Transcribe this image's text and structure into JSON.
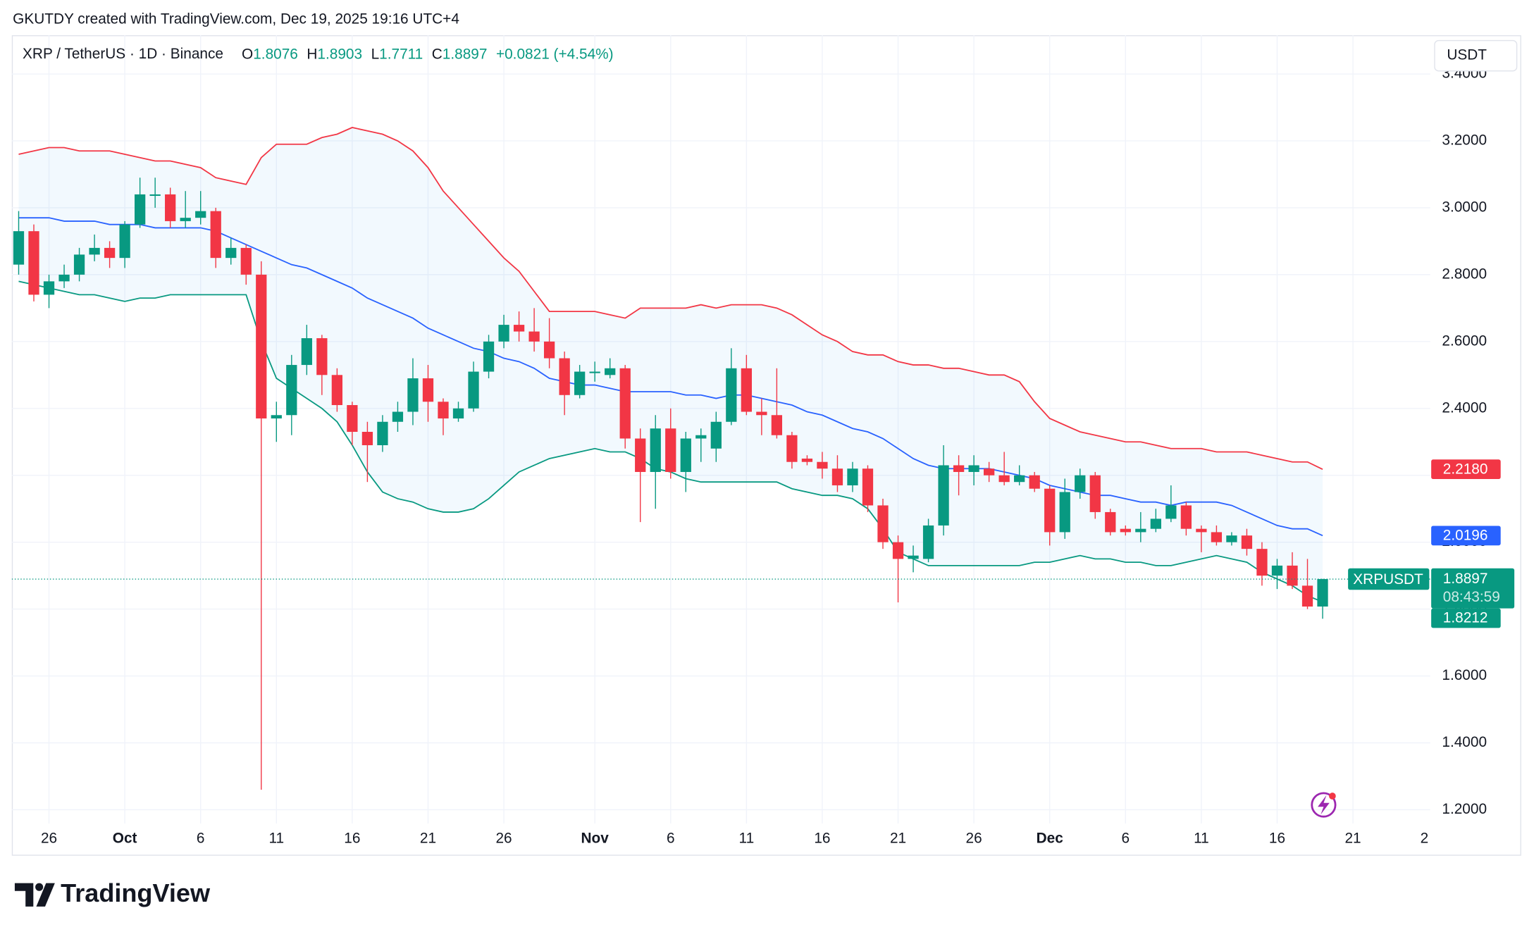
{
  "attribution": "GKUTDY created with TradingView.com, Dec 19, 2025 19:16 UTC+4",
  "symbol": "XRP / TetherUS · 1D · Binance",
  "currency": "USDT",
  "logo": "TradingView",
  "chart_data": {
    "type": "candlestick",
    "ohlc_labels": [
      "O",
      "H",
      "L",
      "C"
    ],
    "change": "+0.0821 (+4.54%)",
    "countdown": "08:43:59",
    "grid": true,
    "band_fill": "#2196f3",
    "xlim": [
      "2025-09-23",
      "2025-12-27"
    ],
    "ylim": [
      1.159,
      3.516
    ],
    "yticks": [
      {
        "value": 1.2,
        "label": "1.2000"
      },
      {
        "value": 1.4,
        "label": "1.4000"
      },
      {
        "value": 1.6,
        "label": "1.6000"
      },
      {
        "value": 1.8,
        "label": "1.8000"
      },
      {
        "value": 2.0,
        "label": "2.0000"
      },
      {
        "value": 2.2,
        "label": "2.2000"
      },
      {
        "value": 2.4,
        "label": "2.4000"
      },
      {
        "value": 2.6,
        "label": "2.6000"
      },
      {
        "value": 2.8,
        "label": "2.8000"
      },
      {
        "value": 3.0,
        "label": "3.0000"
      },
      {
        "value": 3.2,
        "label": "3.2000"
      },
      {
        "value": 3.4,
        "label": "3.4000"
      }
    ],
    "xticks": [
      {
        "value": "2025-09-26",
        "label": "26"
      },
      {
        "value": "2025-10-01",
        "label": "Oct"
      },
      {
        "value": "2025-10-06",
        "label": "6"
      },
      {
        "value": "2025-10-11",
        "label": "11"
      },
      {
        "value": "2025-10-16",
        "label": "16"
      },
      {
        "value": "2025-10-21",
        "label": "21"
      },
      {
        "value": "2025-10-26",
        "label": "26"
      },
      {
        "value": "2025-11-01",
        "label": "Nov"
      },
      {
        "value": "2025-11-06",
        "label": "6"
      },
      {
        "value": "2025-11-11",
        "label": "11"
      },
      {
        "value": "2025-11-16",
        "label": "16"
      },
      {
        "value": "2025-11-21",
        "label": "21"
      },
      {
        "value": "2025-11-26",
        "label": "26"
      },
      {
        "value": "2025-12-01",
        "label": "Dec"
      },
      {
        "value": "2025-12-06",
        "label": "6"
      },
      {
        "value": "2025-12-11",
        "label": "11"
      },
      {
        "value": "2025-12-16",
        "label": "16"
      },
      {
        "value": "2025-12-21",
        "label": "21"
      },
      {
        "value": "2026-01-02",
        "label": "2"
      }
    ],
    "x": [
      "2025-09-24",
      "2025-09-25",
      "2025-09-26",
      "2025-09-27",
      "2025-09-28",
      "2025-09-29",
      "2025-09-30",
      "2025-10-01",
      "2025-10-02",
      "2025-10-03",
      "2025-10-04",
      "2025-10-05",
      "2025-10-06",
      "2025-10-07",
      "2025-10-08",
      "2025-10-09",
      "2025-10-10",
      "2025-10-11",
      "2025-10-12",
      "2025-10-13",
      "2025-10-14",
      "2025-10-15",
      "2025-10-16",
      "2025-10-17",
      "2025-10-18",
      "2025-10-19",
      "2025-10-20",
      "2025-10-21",
      "2025-10-22",
      "2025-10-23",
      "2025-10-24",
      "2025-10-25",
      "2025-10-26",
      "2025-10-27",
      "2025-10-28",
      "2025-10-29",
      "2025-10-30",
      "2025-10-31",
      "2025-11-01",
      "2025-11-02",
      "2025-11-03",
      "2025-11-04",
      "2025-11-05",
      "2025-11-06",
      "2025-11-07",
      "2025-11-08",
      "2025-11-09",
      "2025-11-10",
      "2025-11-11",
      "2025-11-12",
      "2025-11-13",
      "2025-11-14",
      "2025-11-15",
      "2025-11-16",
      "2025-11-17",
      "2025-11-18",
      "2025-11-19",
      "2025-11-20",
      "2025-11-21",
      "2025-11-22",
      "2025-11-23",
      "2025-11-24",
      "2025-11-25",
      "2025-11-26",
      "2025-11-27",
      "2025-11-28",
      "2025-11-29",
      "2025-11-30",
      "2025-12-01",
      "2025-12-02",
      "2025-12-03",
      "2025-12-04",
      "2025-12-05",
      "2025-12-06",
      "2025-12-07",
      "2025-12-08",
      "2025-12-09",
      "2025-12-10",
      "2025-12-11",
      "2025-12-12",
      "2025-12-13",
      "2025-12-14",
      "2025-12-15",
      "2025-12-16",
      "2025-12-17",
      "2025-12-18",
      "2025-12-19"
    ],
    "series": [
      {
        "name": "XRPUSDT",
        "type": "candlestick",
        "up_color": "#089981",
        "down_color": "#f23645",
        "open": [
          2.83,
          2.93,
          2.74,
          2.78,
          2.8,
          2.86,
          2.88,
          2.85,
          2.95,
          3.04,
          3.04,
          2.96,
          2.97,
          2.99,
          2.85,
          2.88,
          2.8,
          2.37,
          2.38,
          2.53,
          2.61,
          2.5,
          2.41,
          2.33,
          2.29,
          2.36,
          2.39,
          2.49,
          2.42,
          2.37,
          2.4,
          2.51,
          2.6,
          2.65,
          2.63,
          2.6,
          2.55,
          2.44,
          2.51,
          2.5,
          2.52,
          2.31,
          2.21,
          2.34,
          2.21,
          2.31,
          2.28,
          2.36,
          2.52,
          2.39,
          2.38,
          2.32,
          2.25,
          2.24,
          2.22,
          2.17,
          2.22,
          2.11,
          2.0,
          1.95,
          1.95,
          2.05,
          2.23,
          2.21,
          2.22,
          2.2,
          2.18,
          2.2,
          2.16,
          2.03,
          2.15,
          2.2,
          2.09,
          2.04,
          2.03,
          2.04,
          2.07,
          2.11,
          2.04,
          2.03,
          2.0,
          2.02,
          1.98,
          1.9,
          1.93,
          1.87,
          1.8076
        ],
        "high": [
          2.99,
          2.95,
          2.8,
          2.83,
          2.88,
          2.92,
          2.9,
          2.96,
          3.09,
          3.09,
          3.06,
          3.05,
          3.05,
          3.0,
          2.91,
          2.89,
          2.84,
          2.42,
          2.56,
          2.65,
          2.62,
          2.52,
          2.42,
          2.36,
          2.38,
          2.42,
          2.55,
          2.53,
          2.43,
          2.42,
          2.54,
          2.62,
          2.68,
          2.69,
          2.7,
          2.67,
          2.57,
          2.53,
          2.54,
          2.55,
          2.53,
          2.34,
          2.38,
          2.4,
          2.33,
          2.34,
          2.39,
          2.58,
          2.56,
          2.43,
          2.52,
          2.33,
          2.26,
          2.27,
          2.26,
          2.24,
          2.23,
          2.13,
          2.02,
          1.99,
          2.07,
          2.29,
          2.26,
          2.26,
          2.24,
          2.27,
          2.23,
          2.21,
          2.17,
          2.19,
          2.22,
          2.21,
          2.1,
          2.05,
          2.09,
          2.1,
          2.17,
          2.12,
          2.05,
          2.05,
          2.03,
          2.04,
          2.0,
          1.95,
          1.97,
          1.95,
          1.8903
        ],
        "low": [
          2.8,
          2.72,
          2.7,
          2.76,
          2.78,
          2.84,
          2.82,
          2.82,
          2.94,
          3.0,
          2.94,
          2.94,
          2.95,
          2.82,
          2.83,
          2.77,
          1.26,
          2.3,
          2.32,
          2.5,
          2.44,
          2.39,
          2.29,
          2.18,
          2.27,
          2.33,
          2.35,
          2.36,
          2.32,
          2.36,
          2.39,
          2.49,
          2.58,
          2.6,
          2.57,
          2.52,
          2.38,
          2.43,
          2.48,
          2.49,
          2.28,
          2.06,
          2.1,
          2.19,
          2.15,
          2.24,
          2.24,
          2.35,
          2.38,
          2.32,
          2.31,
          2.22,
          2.23,
          2.19,
          2.15,
          2.15,
          2.09,
          1.98,
          1.82,
          1.91,
          1.94,
          2.02,
          2.14,
          2.17,
          2.18,
          2.17,
          2.17,
          2.15,
          1.99,
          2.01,
          2.13,
          2.07,
          2.02,
          2.02,
          2.0,
          2.03,
          2.06,
          2.02,
          1.97,
          1.99,
          1.99,
          1.96,
          1.87,
          1.86,
          1.86,
          1.8,
          1.7711
        ],
        "close": [
          2.93,
          2.74,
          2.78,
          2.8,
          2.86,
          2.88,
          2.85,
          2.95,
          3.04,
          3.04,
          2.96,
          2.97,
          2.99,
          2.85,
          2.88,
          2.8,
          2.37,
          2.38,
          2.53,
          2.61,
          2.5,
          2.41,
          2.33,
          2.29,
          2.36,
          2.39,
          2.49,
          2.42,
          2.37,
          2.4,
          2.51,
          2.6,
          2.65,
          2.63,
          2.6,
          2.55,
          2.44,
          2.51,
          2.51,
          2.52,
          2.31,
          2.21,
          2.34,
          2.21,
          2.31,
          2.32,
          2.36,
          2.52,
          2.39,
          2.38,
          2.32,
          2.24,
          2.24,
          2.22,
          2.17,
          2.22,
          2.11,
          2.0,
          1.95,
          1.96,
          2.05,
          2.23,
          2.21,
          2.23,
          2.2,
          2.18,
          2.2,
          2.16,
          2.03,
          2.15,
          2.2,
          2.09,
          2.03,
          2.03,
          2.04,
          2.07,
          2.11,
          2.04,
          2.03,
          2.0,
          2.02,
          1.98,
          1.9,
          1.93,
          1.87,
          1.8076,
          1.8897
        ]
      },
      {
        "type": "line",
        "color": "#f23645",
        "last_value_label": "2.2180",
        "values": [
          3.16,
          3.17,
          3.18,
          3.18,
          3.17,
          3.17,
          3.17,
          3.16,
          3.15,
          3.14,
          3.14,
          3.13,
          3.12,
          3.09,
          3.08,
          3.07,
          3.15,
          3.19,
          3.19,
          3.19,
          3.21,
          3.22,
          3.24,
          3.23,
          3.22,
          3.2,
          3.17,
          3.12,
          3.05,
          3.0,
          2.95,
          2.9,
          2.85,
          2.81,
          2.75,
          2.69,
          2.69,
          2.69,
          2.69,
          2.68,
          2.67,
          2.7,
          2.7,
          2.7,
          2.7,
          2.71,
          2.7,
          2.71,
          2.71,
          2.71,
          2.7,
          2.68,
          2.65,
          2.62,
          2.6,
          2.57,
          2.56,
          2.56,
          2.54,
          2.53,
          2.53,
          2.52,
          2.52,
          2.51,
          2.5,
          2.5,
          2.48,
          2.42,
          2.37,
          2.35,
          2.33,
          2.32,
          2.31,
          2.3,
          2.3,
          2.29,
          2.28,
          2.28,
          2.28,
          2.27,
          2.27,
          2.27,
          2.26,
          2.25,
          2.24,
          2.24,
          2.218
        ]
      },
      {
        "type": "line",
        "color": "#2962ff",
        "values": [
          2.97,
          2.97,
          2.97,
          2.96,
          2.96,
          2.96,
          2.95,
          2.95,
          2.95,
          2.94,
          2.94,
          2.94,
          2.94,
          2.93,
          2.91,
          2.89,
          2.87,
          2.85,
          2.83,
          2.82,
          2.8,
          2.78,
          2.76,
          2.73,
          2.71,
          2.69,
          2.67,
          2.64,
          2.62,
          2.6,
          2.58,
          2.57,
          2.55,
          2.54,
          2.52,
          2.49,
          2.48,
          2.47,
          2.47,
          2.46,
          2.45,
          2.45,
          2.45,
          2.45,
          2.44,
          2.44,
          2.43,
          2.44,
          2.44,
          2.43,
          2.42,
          2.41,
          2.39,
          2.38,
          2.36,
          2.34,
          2.33,
          2.31,
          2.28,
          2.25,
          2.23,
          2.22,
          2.22,
          2.22,
          2.22,
          2.21,
          2.2,
          2.19,
          2.17,
          2.16,
          2.15,
          2.14,
          2.14,
          2.13,
          2.12,
          2.12,
          2.11,
          2.12,
          2.12,
          2.12,
          2.11,
          2.09,
          2.07,
          2.05,
          2.04,
          2.04,
          2.0196
        ]
      },
      {
        "type": "line",
        "color": "#089981",
        "values": [
          2.78,
          2.77,
          2.76,
          2.75,
          2.74,
          2.74,
          2.73,
          2.72,
          2.73,
          2.73,
          2.74,
          2.74,
          2.74,
          2.74,
          2.74,
          2.74,
          2.6,
          2.49,
          2.46,
          2.43,
          2.4,
          2.36,
          2.29,
          2.21,
          2.15,
          2.13,
          2.12,
          2.1,
          2.09,
          2.09,
          2.1,
          2.13,
          2.17,
          2.21,
          2.23,
          2.25,
          2.26,
          2.27,
          2.28,
          2.27,
          2.27,
          2.25,
          2.22,
          2.21,
          2.19,
          2.18,
          2.18,
          2.18,
          2.18,
          2.18,
          2.18,
          2.16,
          2.15,
          2.14,
          2.14,
          2.13,
          2.1,
          2.04,
          1.97,
          1.95,
          1.93,
          1.93,
          1.93,
          1.93,
          1.93,
          1.93,
          1.93,
          1.94,
          1.94,
          1.95,
          1.96,
          1.95,
          1.95,
          1.94,
          1.94,
          1.93,
          1.93,
          1.94,
          1.95,
          1.96,
          1.95,
          1.94,
          1.91,
          1.89,
          1.87,
          1.84,
          1.8212
        ]
      }
    ]
  }
}
